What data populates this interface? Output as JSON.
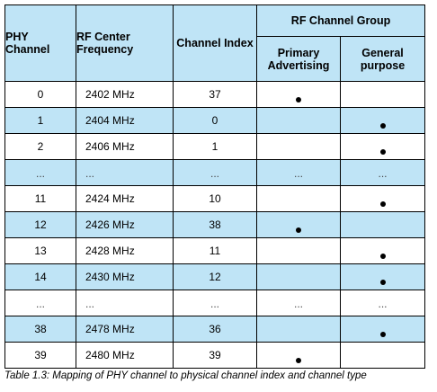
{
  "header": {
    "phy_channel": "PHY Channel",
    "rf_center_frequency": "RF Center Frequency",
    "channel_index": "Channel Index",
    "rf_channel_group": "RF Channel Group",
    "primary_advertising": "Primary Advertising",
    "general_purpose": "General purpose"
  },
  "rows": [
    {
      "phy": "0",
      "freq": "2402 MHz",
      "index": "37",
      "primary": "●",
      "general": "",
      "shaded": false
    },
    {
      "phy": "1",
      "freq": "2404 MHz",
      "index": "0",
      "primary": "",
      "general": "●",
      "shaded": true
    },
    {
      "phy": "2",
      "freq": "2406 MHz",
      "index": "1",
      "primary": "",
      "general": "●",
      "shaded": false
    },
    {
      "phy": "...",
      "freq": "...",
      "index": "...",
      "primary": "...",
      "general": "...",
      "shaded": true
    },
    {
      "phy": "11",
      "freq": "2424 MHz",
      "index": "10",
      "primary": "",
      "general": "●",
      "shaded": false
    },
    {
      "phy": "12",
      "freq": "2426 MHz",
      "index": "38",
      "primary": "●",
      "general": "",
      "shaded": true
    },
    {
      "phy": "13",
      "freq": "2428 MHz",
      "index": "11",
      "primary": "",
      "general": "●",
      "shaded": false
    },
    {
      "phy": "14",
      "freq": "2430 MHz",
      "index": "12",
      "primary": "",
      "general": "●",
      "shaded": true
    },
    {
      "phy": "...",
      "freq": "...",
      "index": "...",
      "primary": "...",
      "general": "...",
      "shaded": false
    },
    {
      "phy": "38",
      "freq": "2478 MHz",
      "index": "36",
      "primary": "",
      "general": "●",
      "shaded": true
    },
    {
      "phy": "39",
      "freq": "2480 MHz",
      "index": "39",
      "primary": "●",
      "general": "",
      "shaded": false
    }
  ],
  "caption": "Table 1.3:  Mapping of PHY channel to physical channel index and channel type",
  "colors": {
    "header_fill": "#bfe4f6",
    "row_shade": "#bfe4f6",
    "border": "#000000"
  }
}
